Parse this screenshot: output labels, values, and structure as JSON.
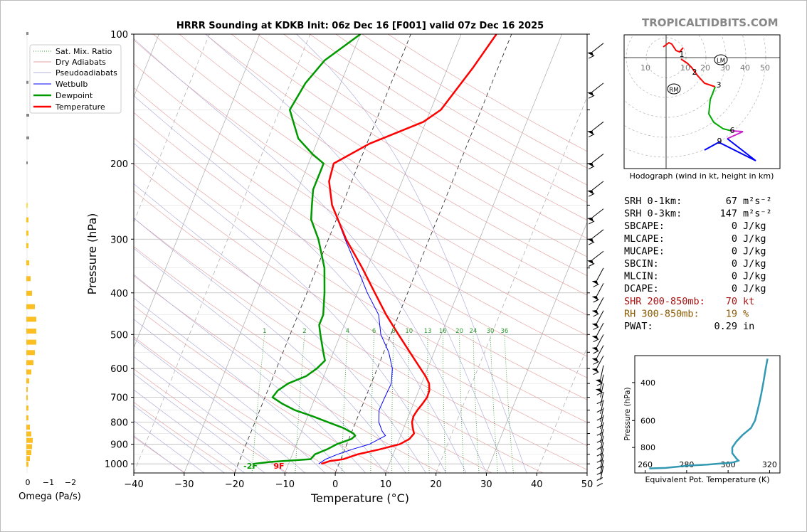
{
  "site": {
    "brand": "TROPICALTIDBITS.COM"
  },
  "chart_data": [
    {
      "type": "line",
      "subtype": "skew-t log-p sounding",
      "title": "HRRR Sounding at KDKB Init: 06z Dec 16 [F001] valid 07z Dec 16 2025",
      "xlabel": "Temperature (°C)",
      "ylabel": "Pressure (hPa)",
      "xlim": [
        -40,
        50
      ],
      "ylim": [
        1050,
        100
      ],
      "yscale": "log",
      "x_ticks": [
        "−40",
        "−30",
        "−20",
        "−10",
        "0",
        "10",
        "20",
        "30",
        "40",
        "50"
      ],
      "y_ticks": [
        "100",
        "200",
        "300",
        "400",
        "500",
        "600",
        "700",
        "800",
        "900",
        "1000"
      ],
      "legend": {
        "placement": "top-left",
        "entries": [
          "Sat. Mix. Ratio",
          "Dry Adiabats",
          "Pseudoadiabats",
          "Wetbulb",
          "Dewpoint",
          "Temperature"
        ]
      },
      "series": [
        {
          "name": "Temperature",
          "color": "#ff0000",
          "points": [
            [
              1000,
              -3.5
            ],
            [
              985,
              -2
            ],
            [
              975,
              0.5
            ],
            [
              950,
              3
            ],
            [
              925,
              7
            ],
            [
              900,
              10.5
            ],
            [
              875,
              12
            ],
            [
              850,
              12.5
            ],
            [
              825,
              11.8
            ],
            [
              800,
              11.2
            ],
            [
              775,
              11
            ],
            [
              750,
              11.3
            ],
            [
              725,
              11.8
            ],
            [
              700,
              12.2
            ],
            [
              675,
              12.1
            ],
            [
              650,
              11.5
            ],
            [
              625,
              10.2
            ],
            [
              600,
              8.6
            ],
            [
              550,
              5.2
            ],
            [
              500,
              1.5
            ],
            [
              450,
              -2.5
            ],
            [
              400,
              -6.5
            ],
            [
              350,
              -11
            ],
            [
              300,
              -16.5
            ],
            [
              250,
              -22
            ],
            [
              220,
              -24.5
            ],
            [
              200,
              -25
            ],
            [
              180,
              -19.5
            ],
            [
              160,
              -10.5
            ],
            [
              150,
              -8
            ],
            [
              120,
              -5
            ],
            [
              100,
              -3
            ]
          ]
        },
        {
          "name": "Dewpoint",
          "color": "#009900",
          "points": [
            [
              1000,
              -17
            ],
            [
              990,
              -14
            ],
            [
              975,
              -6
            ],
            [
              960,
              -5.7
            ],
            [
              950,
              -5.5
            ],
            [
              925,
              -3.5
            ],
            [
              900,
              -2
            ],
            [
              875,
              0.5
            ],
            [
              860,
              1
            ],
            [
              850,
              0.5
            ],
            [
              825,
              -2
            ],
            [
              800,
              -5.5
            ],
            [
              775,
              -9
            ],
            [
              750,
              -13
            ],
            [
              725,
              -16
            ],
            [
              700,
              -18.5
            ],
            [
              675,
              -18
            ],
            [
              650,
              -16.5
            ],
            [
              625,
              -13.5
            ],
            [
              600,
              -12
            ],
            [
              575,
              -11
            ],
            [
              550,
              -12
            ],
            [
              500,
              -14
            ],
            [
              475,
              -15
            ],
            [
              450,
              -15
            ],
            [
              400,
              -16.5
            ],
            [
              350,
              -18.5
            ],
            [
              300,
              -22
            ],
            [
              270,
              -25
            ],
            [
              250,
              -26
            ],
            [
              230,
              -27
            ],
            [
              210,
              -27
            ],
            [
              200,
              -27
            ],
            [
              190,
              -30
            ],
            [
              175,
              -34
            ],
            [
              150,
              -38
            ],
            [
              130,
              -37
            ],
            [
              115,
              -35
            ],
            [
              100,
              -30
            ]
          ]
        },
        {
          "name": "Wetbulb",
          "color": "#0000ff",
          "points": [
            [
              1000,
              -4
            ],
            [
              975,
              -3
            ],
            [
              950,
              -1
            ],
            [
              925,
              1.5
            ],
            [
              900,
              4.5
            ],
            [
              860,
              7
            ],
            [
              840,
              6
            ],
            [
              800,
              4.6
            ],
            [
              750,
              3.7
            ],
            [
              700,
              3.8
            ],
            [
              650,
              4
            ],
            [
              600,
              3
            ],
            [
              550,
              1
            ],
            [
              500,
              -2
            ],
            [
              450,
              -4
            ],
            [
              400,
              -8
            ],
            [
              350,
              -12
            ],
            [
              300,
              -16.7
            ],
            [
              250,
              -22
            ],
            [
              220,
              -24.5
            ]
          ]
        }
      ],
      "mixing_ratio_labels": [
        "1",
        "2",
        "4",
        "6",
        "8",
        "10",
        "13",
        "16",
        "20",
        "24",
        "30",
        "36"
      ],
      "surface_labels": {
        "dewpoint": "-2F",
        "temperature": "9F"
      }
    },
    {
      "type": "line",
      "subtype": "hodograph",
      "caption": "Hodograph (wind in kt, height in km)",
      "ring_labels": [
        "10",
        "10",
        "20",
        "30",
        "40",
        "50"
      ],
      "height_markers": [
        "1",
        "2",
        "3",
        "6",
        "9"
      ],
      "storm_motion_labels": [
        "LM",
        "RM"
      ]
    },
    {
      "type": "line",
      "subtype": "equivalent potential temperature profile",
      "xlabel": "Equivalent Pot. Temperature (K)",
      "ylabel": "Pressure (hPa)",
      "xlim": [
        255,
        325
      ],
      "x_ticks": [
        "260",
        "280",
        "300",
        "320"
      ],
      "y_ticks": [
        "400",
        "600",
        "800"
      ],
      "series": [
        {
          "name": "Theta-E",
          "color": "#3399b3",
          "points": [
            [
              1000,
              262
            ],
            [
              995,
              270
            ],
            [
              985,
              274
            ],
            [
              970,
              281
            ],
            [
              960,
              290
            ],
            [
              950,
              296
            ],
            [
              945,
              300
            ],
            [
              935,
              303
            ],
            [
              920,
              305
            ],
            [
              900,
              304
            ],
            [
              875,
              303
            ],
            [
              850,
              302
            ],
            [
              800,
              302
            ],
            [
              750,
              304
            ],
            [
              700,
              307
            ],
            [
              650,
              311
            ],
            [
              600,
              313
            ],
            [
              550,
              314
            ],
            [
              500,
              315
            ],
            [
              450,
              316
            ],
            [
              400,
              317
            ],
            [
              350,
              318
            ],
            [
              310,
              319
            ]
          ]
        }
      ]
    },
    {
      "type": "bar",
      "subtype": "omega profile",
      "xlabel": "Omega (Pa/s)",
      "x_ticks": [
        "0",
        "−1",
        "−2"
      ]
    }
  ],
  "indices": [
    {
      "label": "SRH 0-1km:",
      "value": "67",
      "unit": "m²s⁻²",
      "color": "#000000"
    },
    {
      "label": "SRH 0-3km:",
      "value": "147",
      "unit": "m²s⁻²",
      "color": "#000000"
    },
    {
      "label": "SBCAPE:",
      "value": "0",
      "unit": "J/kg",
      "color": "#000000"
    },
    {
      "label": "MLCAPE:",
      "value": "0",
      "unit": "J/kg",
      "color": "#000000"
    },
    {
      "label": "MUCAPE:",
      "value": "0",
      "unit": "J/kg",
      "color": "#000000"
    },
    {
      "label": "SBCIN:",
      "value": "0",
      "unit": "J/kg",
      "color": "#000000"
    },
    {
      "label": "MLCIN:",
      "value": "0",
      "unit": "J/kg",
      "color": "#000000"
    },
    {
      "label": "DCAPE:",
      "value": "0",
      "unit": "J/kg",
      "color": "#000000"
    },
    {
      "label": "SHR 200-850mb:",
      "value": "70",
      "unit": "kt",
      "color": "#aa1111"
    },
    {
      "label": "RH 300-850mb:",
      "value": "19",
      "unit": "%",
      "color": "#8a5a00"
    },
    {
      "label": "PWAT:",
      "value": "0.29",
      "unit": "in",
      "color": "#000000"
    }
  ]
}
